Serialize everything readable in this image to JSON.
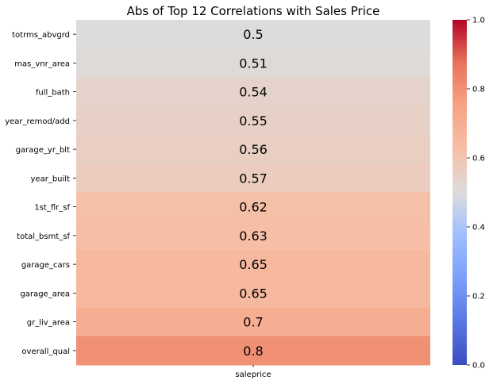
{
  "chart_data": {
    "type": "heatmap",
    "title": "Abs of Top 12 Correlations with Sales Price",
    "x_categories": [
      "saleprice"
    ],
    "y_categories": [
      "totrms_abvgrd",
      "mas_vnr_area",
      "full_bath",
      "year_remod/add",
      "garage_yr_blt",
      "year_built",
      "1st_flr_sf",
      "total_bsmt_sf",
      "garage_cars",
      "garage_area",
      "gr_liv_area",
      "overall_qual"
    ],
    "values": [
      0.5,
      0.51,
      0.54,
      0.55,
      0.56,
      0.57,
      0.62,
      0.63,
      0.65,
      0.65,
      0.7,
      0.8
    ],
    "cell_labels": [
      "0.5",
      "0.51",
      "0.54",
      "0.55",
      "0.56",
      "0.57",
      "0.62",
      "0.63",
      "0.65",
      "0.65",
      "0.7",
      "0.8"
    ],
    "colormap": "coolwarm",
    "vmin": 0.0,
    "vmax": 1.0,
    "colorbar_ticks": [
      "0.0",
      "0.2",
      "0.4",
      "0.6",
      "0.8",
      "1.0"
    ]
  }
}
